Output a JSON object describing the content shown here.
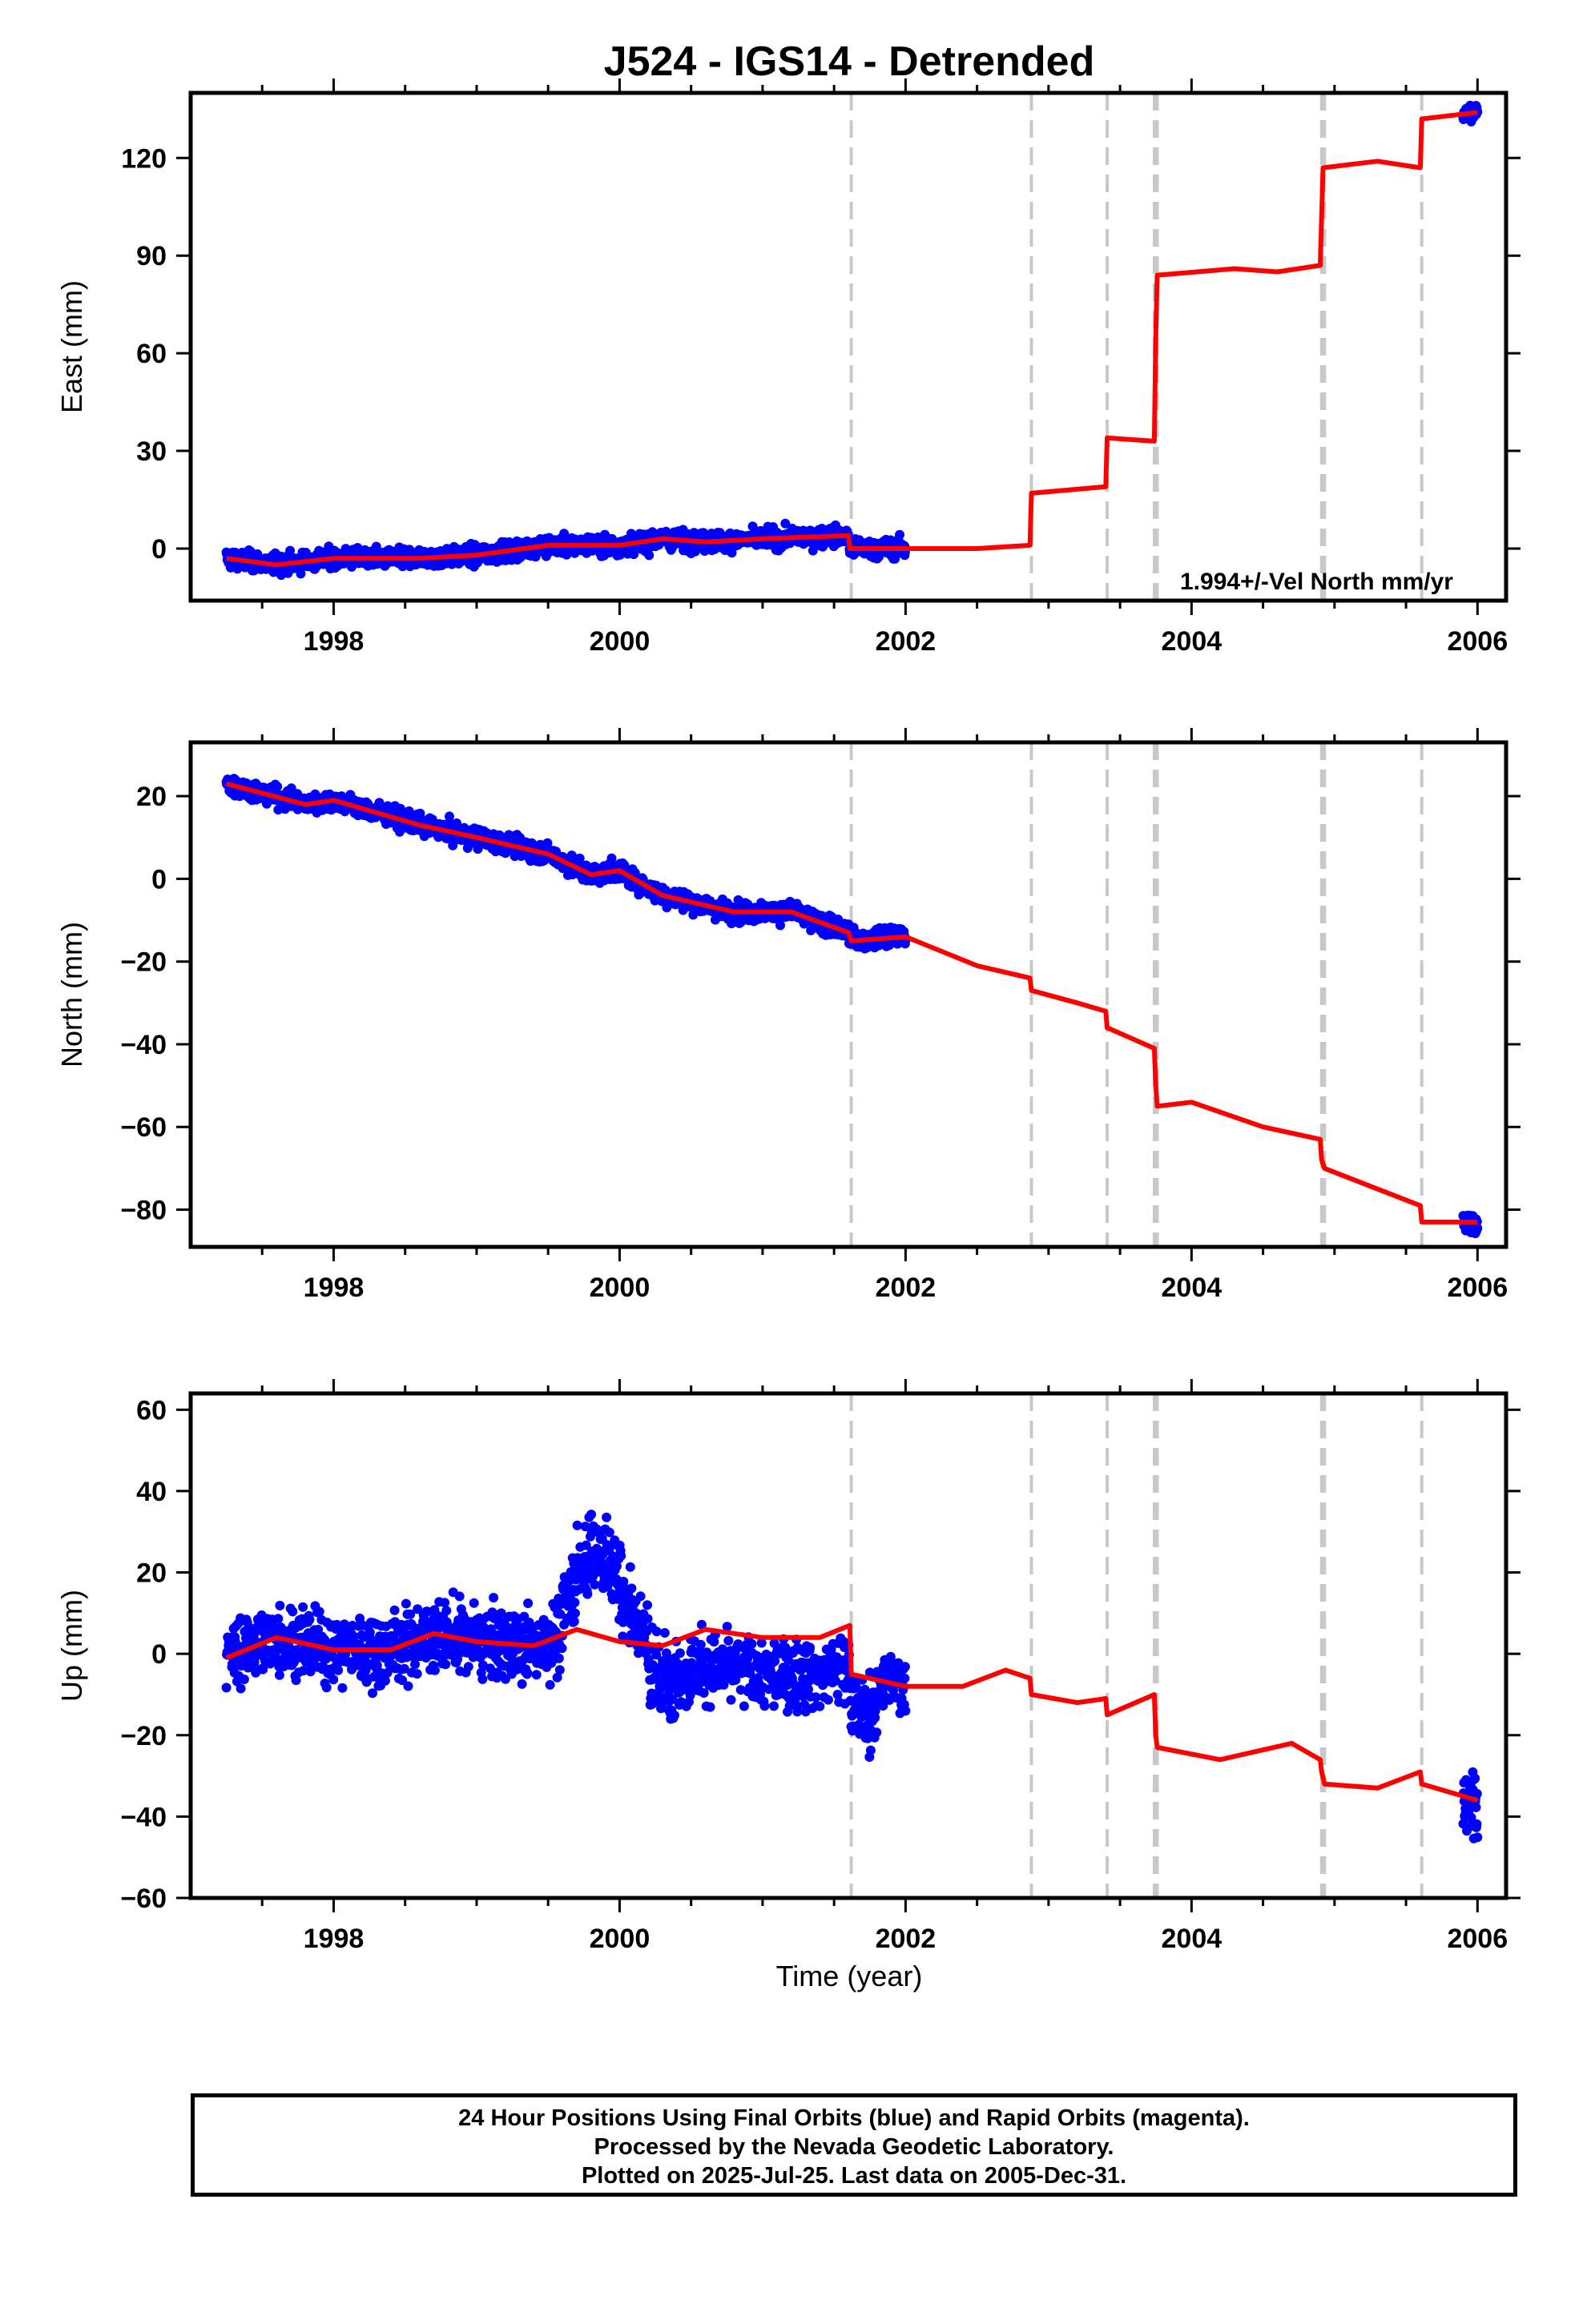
{
  "title": "J524 - IGS14 - Detrended",
  "colors": {
    "data": "#0000ff",
    "model": "#ff0000",
    "steps": "#c8c8c8",
    "frame": "#000000"
  },
  "xaxis": {
    "label": "Time (year)",
    "range": [
      1997.0,
      2006.2
    ],
    "ticks": [
      1998,
      2000,
      2002,
      2004,
      2006
    ]
  },
  "step_epochs": [
    2001.62,
    2002.88,
    2003.41,
    2003.74,
    2003.76,
    2004.91,
    2004.93,
    2005.61
  ],
  "panels": [
    {
      "id": "east",
      "ylabel": "East (mm)",
      "ylim": [
        -16,
        140
      ],
      "yticks": [
        0,
        30,
        60,
        90,
        120
      ],
      "annotation": "1.994+/-Vel North mm/yr",
      "data_span": [
        1997.25,
        2002.0
      ],
      "data_tail": [
        2005.9,
        2006.0
      ],
      "model": [
        [
          1997.25,
          -3
        ],
        [
          1997.6,
          -5
        ],
        [
          1998.0,
          -3
        ],
        [
          1998.6,
          -3
        ],
        [
          1999.0,
          -2
        ],
        [
          1999.5,
          1
        ],
        [
          2000.0,
          1
        ],
        [
          2000.3,
          3
        ],
        [
          2000.6,
          2
        ],
        [
          2001.0,
          3
        ],
        [
          2001.6,
          4
        ],
        [
          2001.61,
          0
        ],
        [
          2002.0,
          0
        ],
        [
          2002.5,
          0
        ],
        [
          2002.87,
          1
        ],
        [
          2002.88,
          17
        ],
        [
          2003.4,
          19
        ],
        [
          2003.41,
          34
        ],
        [
          2003.74,
          33
        ],
        [
          2003.75,
          65
        ],
        [
          2003.76,
          84
        ],
        [
          2004.3,
          86
        ],
        [
          2004.6,
          85
        ],
        [
          2004.9,
          87
        ],
        [
          2004.91,
          102
        ],
        [
          2004.92,
          117
        ],
        [
          2005.3,
          119
        ],
        [
          2005.6,
          117
        ],
        [
          2005.61,
          132
        ],
        [
          2006.0,
          134
        ]
      ]
    },
    {
      "id": "north",
      "ylabel": "North (mm)",
      "ylim": [
        -89,
        33
      ],
      "yticks": [
        -80,
        -60,
        -40,
        -20,
        0,
        20
      ],
      "annotation": "",
      "data_span": [
        1997.25,
        2002.0
      ],
      "data_tail": [
        2005.9,
        2006.0
      ],
      "model": [
        [
          1997.25,
          23
        ],
        [
          1997.8,
          18
        ],
        [
          1998.0,
          19
        ],
        [
          1998.6,
          13
        ],
        [
          1999.0,
          10
        ],
        [
          1999.5,
          6
        ],
        [
          1999.8,
          1
        ],
        [
          2000.0,
          2
        ],
        [
          2000.3,
          -4
        ],
        [
          2000.8,
          -8
        ],
        [
          2001.2,
          -8
        ],
        [
          2001.6,
          -13
        ],
        [
          2001.62,
          -15
        ],
        [
          2002.0,
          -14
        ],
        [
          2002.5,
          -21
        ],
        [
          2002.87,
          -24
        ],
        [
          2002.88,
          -27
        ],
        [
          2003.2,
          -30
        ],
        [
          2003.4,
          -32
        ],
        [
          2003.41,
          -36
        ],
        [
          2003.74,
          -41
        ],
        [
          2003.75,
          -50
        ],
        [
          2003.76,
          -55
        ],
        [
          2004.0,
          -54
        ],
        [
          2004.5,
          -60
        ],
        [
          2004.9,
          -63
        ],
        [
          2004.91,
          -68
        ],
        [
          2004.93,
          -70
        ],
        [
          2005.3,
          -75
        ],
        [
          2005.6,
          -79
        ],
        [
          2005.61,
          -83
        ],
        [
          2006.0,
          -83
        ]
      ]
    },
    {
      "id": "up",
      "ylabel": "Up (mm)",
      "ylim": [
        -60,
        64
      ],
      "yticks": [
        -60,
        -40,
        -20,
        0,
        20,
        40,
        60
      ],
      "annotation": "",
      "data_span": [
        1997.25,
        2002.0
      ],
      "data_tail": [
        2005.9,
        2006.0
      ],
      "model": [
        [
          1997.25,
          -1
        ],
        [
          1997.6,
          4
        ],
        [
          1998.0,
          1
        ],
        [
          1998.4,
          1
        ],
        [
          1998.7,
          5
        ],
        [
          1999.0,
          3
        ],
        [
          1999.4,
          2
        ],
        [
          1999.7,
          6
        ],
        [
          2000.0,
          3
        ],
        [
          2000.3,
          2
        ],
        [
          2000.6,
          6
        ],
        [
          2001.0,
          4
        ],
        [
          2001.4,
          4
        ],
        [
          2001.61,
          7
        ],
        [
          2001.62,
          -5
        ],
        [
          2002.0,
          -8
        ],
        [
          2002.4,
          -8
        ],
        [
          2002.7,
          -4
        ],
        [
          2002.87,
          -6
        ],
        [
          2002.88,
          -10
        ],
        [
          2003.2,
          -12
        ],
        [
          2003.4,
          -11
        ],
        [
          2003.41,
          -15
        ],
        [
          2003.74,
          -10
        ],
        [
          2003.75,
          -20
        ],
        [
          2003.76,
          -23
        ],
        [
          2004.2,
          -26
        ],
        [
          2004.7,
          -22
        ],
        [
          2004.9,
          -26
        ],
        [
          2004.91,
          -29
        ],
        [
          2004.93,
          -32
        ],
        [
          2005.3,
          -33
        ],
        [
          2005.6,
          -29
        ],
        [
          2005.61,
          -32
        ],
        [
          2006.0,
          -36
        ]
      ]
    }
  ],
  "footer": [
    "24 Hour Positions Using Final Orbits (blue) and Rapid Orbits (magenta).",
    "Processed by the Nevada Geodetic Laboratory.",
    "Plotted on 2025-Jul-25. Last data on 2005-Dec-31."
  ]
}
